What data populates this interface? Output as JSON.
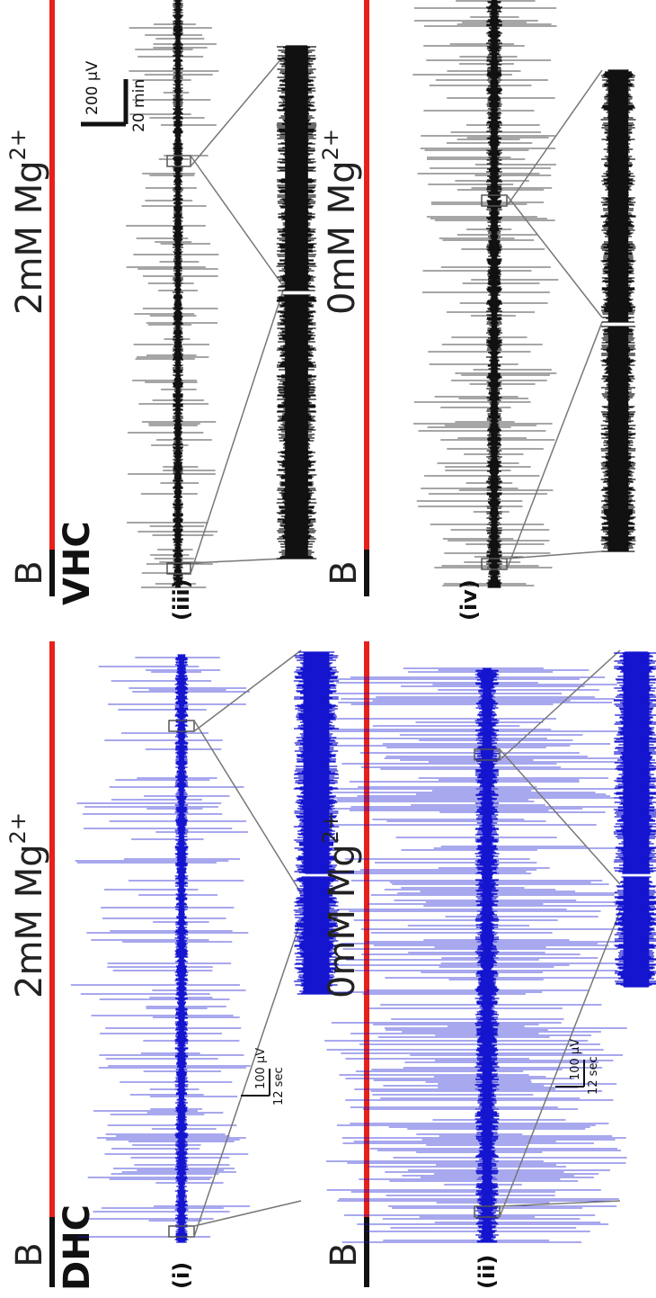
{
  "panels": [
    {
      "id": "i",
      "label": "(i)",
      "group": "DHC",
      "baseline": "B",
      "condition_main": "2mM Mg",
      "condition_sup": "2+",
      "color": "#1515d0",
      "scalebar": {
        "amplitude": "100 µV",
        "time": "12 sec"
      }
    },
    {
      "id": "ii",
      "label": "(ii)",
      "group": "",
      "baseline": "B",
      "condition_main": "0mM Mg",
      "condition_sup": "2+",
      "color": "#1515d0",
      "scalebar": {
        "amplitude": "100 µV",
        "time": "12 sec"
      }
    },
    {
      "id": "iii",
      "label": "(iii)",
      "group": "VHC",
      "baseline": "B",
      "condition_main": "2mM Mg",
      "condition_sup": "2+",
      "color": "#111111",
      "scalebar": {
        "amplitude": "200 µV",
        "time": "20 min"
      }
    },
    {
      "id": "iv",
      "label": "(iv)",
      "group": "",
      "baseline": "B",
      "condition_main": "0mM Mg",
      "condition_sup": "2+",
      "color": "#111111",
      "scalebar": null
    }
  ],
  "colors": {
    "condition_bar": "#e8201a",
    "baseline_bar": "#111111",
    "dhc_trace": "#1515d0",
    "vhc_trace": "#111111",
    "zoom_lines": "#777777"
  }
}
